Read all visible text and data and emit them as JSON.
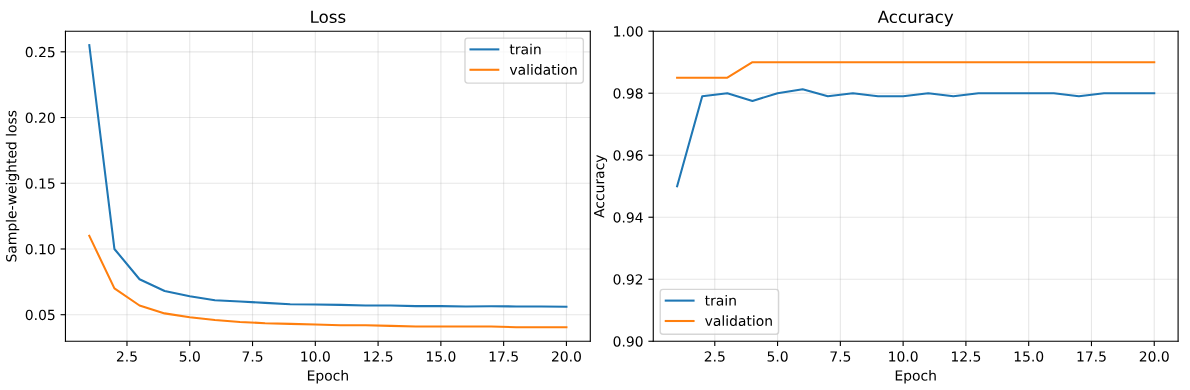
{
  "chart_data": [
    {
      "type": "line",
      "title": "Loss",
      "xlabel": "Epoch",
      "ylabel": "Sample-weighted loss",
      "x": [
        1,
        2,
        3,
        4,
        5,
        6,
        7,
        8,
        9,
        10,
        11,
        12,
        13,
        14,
        15,
        16,
        17,
        18,
        19,
        20
      ],
      "series": [
        {
          "name": "train",
          "color": "#1f77b4",
          "values": [
            0.255,
            0.1,
            0.077,
            0.068,
            0.064,
            0.061,
            0.06,
            0.059,
            0.058,
            0.0578,
            0.0575,
            0.057,
            0.057,
            0.0565,
            0.0565,
            0.0563,
            0.0564,
            0.0563,
            0.0562,
            0.0561
          ]
        },
        {
          "name": "validation",
          "color": "#ff7f0e",
          "values": [
            0.11,
            0.07,
            0.057,
            0.051,
            0.048,
            0.046,
            0.0445,
            0.0435,
            0.043,
            0.0425,
            0.042,
            0.042,
            0.0415,
            0.041,
            0.041,
            0.041,
            0.041,
            0.0405,
            0.0405,
            0.0405
          ]
        }
      ],
      "xlim": [
        0.05,
        20.95
      ],
      "ylim": [
        0.0298,
        0.2657
      ],
      "xticks": [
        {
          "value": 2.5,
          "label": "2.5"
        },
        {
          "value": 5,
          "label": "5.0"
        },
        {
          "value": 7.5,
          "label": "7.5"
        },
        {
          "value": 10,
          "label": "10.0"
        },
        {
          "value": 12.5,
          "label": "12.5"
        },
        {
          "value": 15,
          "label": "15.0"
        },
        {
          "value": 17.5,
          "label": "17.5"
        },
        {
          "value": 20,
          "label": "20.0"
        }
      ],
      "yticks": [
        0.05,
        {
          "value": 0.1,
          "label": "0.10"
        },
        0.15,
        {
          "value": 0.2,
          "label": "0.20"
        },
        0.25
      ],
      "grid": true,
      "legend": "top right",
      "marker": "none",
      "line_style": "solid"
    },
    {
      "type": "line",
      "title": "Accuracy",
      "xlabel": "Epoch",
      "ylabel": "Accuracy",
      "x": [
        1,
        2,
        3,
        4,
        5,
        6,
        7,
        8,
        9,
        10,
        11,
        12,
        13,
        14,
        15,
        16,
        17,
        18,
        19,
        20
      ],
      "series": [
        {
          "name": "train",
          "color": "#1f77b4",
          "values": [
            0.95,
            0.979,
            0.98,
            0.9775,
            0.98,
            0.9813,
            0.979,
            0.98,
            0.979,
            0.979,
            0.98,
            0.979,
            0.98,
            0.98,
            0.98,
            0.98,
            0.979,
            0.98,
            0.98,
            0.98
          ]
        },
        {
          "name": "validation",
          "color": "#ff7f0e",
          "values": [
            0.985,
            0.985,
            0.985,
            0.99,
            0.99,
            0.99,
            0.99,
            0.99,
            0.99,
            0.99,
            0.99,
            0.99,
            0.99,
            0.99,
            0.99,
            0.99,
            0.99,
            0.99,
            0.99,
            0.99
          ]
        }
      ],
      "xlim": [
        0.05,
        20.95
      ],
      "ylim": [
        0.9,
        1.0
      ],
      "xticks": [
        {
          "value": 2.5,
          "label": "2.5"
        },
        {
          "value": 5,
          "label": "5.0"
        },
        {
          "value": 7.5,
          "label": "7.5"
        },
        {
          "value": 10,
          "label": "10.0"
        },
        {
          "value": 12.5,
          "label": "12.5"
        },
        {
          "value": 15,
          "label": "15.0"
        },
        {
          "value": 17.5,
          "label": "17.5"
        },
        {
          "value": 20,
          "label": "20.0"
        }
      ],
      "yticks": [
        {
          "value": 0.9,
          "label": "0.90"
        },
        0.92,
        0.94,
        0.96,
        0.98,
        {
          "value": 1.0,
          "label": "1.00"
        }
      ],
      "grid": true,
      "legend": "bottom left",
      "marker": "none",
      "line_style": "solid"
    }
  ]
}
